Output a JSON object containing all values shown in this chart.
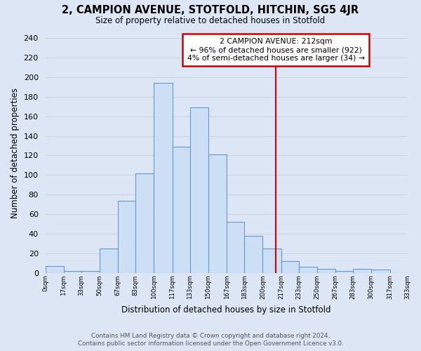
{
  "title": "2, CAMPION AVENUE, STOTFOLD, HITCHIN, SG5 4JR",
  "subtitle": "Size of property relative to detached houses in Stotfold",
  "xlabel": "Distribution of detached houses by size in Stotfold",
  "ylabel": "Number of detached properties",
  "bin_edges": [
    0,
    17,
    33,
    50,
    67,
    83,
    100,
    117,
    133,
    150,
    167,
    183,
    200,
    217,
    233,
    250,
    267,
    283,
    300,
    317,
    333
  ],
  "bin_heights": [
    7,
    2,
    2,
    25,
    74,
    102,
    194,
    129,
    169,
    121,
    52,
    38,
    25,
    12,
    6,
    4,
    2,
    4,
    3,
    0
  ],
  "bar_color": "#ccdff5",
  "bar_edgecolor": "#6699cc",
  "property_line_x": 212,
  "property_line_color": "#cc0000",
  "annotation_title": "2 CAMPION AVENUE: 212sqm",
  "annotation_line1": "← 96% of detached houses are smaller (922)",
  "annotation_line2": "4% of semi-detached houses are larger (34) →",
  "annotation_box_facecolor": "white",
  "annotation_box_edgecolor": "#cc0000",
  "grid_color": "#c8d4e8",
  "background_color": "#dde6f5",
  "yticks": [
    0,
    20,
    40,
    60,
    80,
    100,
    120,
    140,
    160,
    180,
    200,
    220,
    240
  ],
  "ylim": [
    0,
    245
  ],
  "xlim": [
    0,
    333
  ],
  "xtick_labels": [
    "0sqm",
    "17sqm",
    "33sqm",
    "50sqm",
    "67sqm",
    "83sqm",
    "100sqm",
    "117sqm",
    "133sqm",
    "150sqm",
    "167sqm",
    "183sqm",
    "200sqm",
    "217sqm",
    "233sqm",
    "250sqm",
    "267sqm",
    "283sqm",
    "300sqm",
    "317sqm",
    "333sqm"
  ],
  "footer_line1": "Contains HM Land Registry data © Crown copyright and database right 2024.",
  "footer_line2": "Contains public sector information licensed under the Open Government Licence v3.0."
}
